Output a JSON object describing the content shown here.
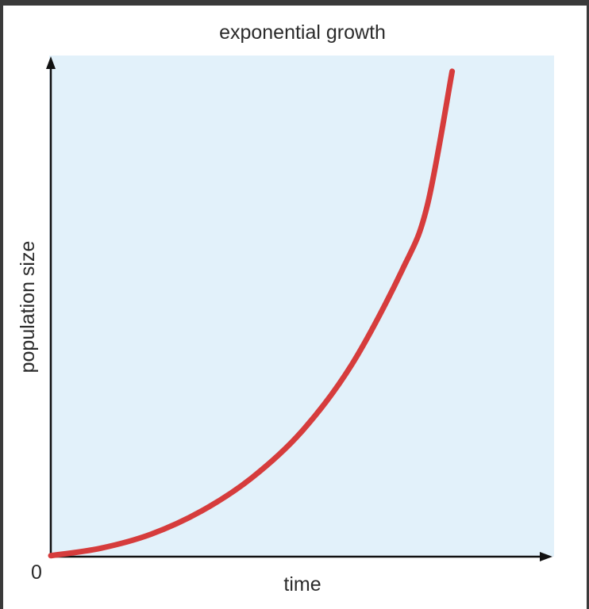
{
  "chart_data": {
    "type": "line",
    "title": "exponential growth",
    "xlabel": "time",
    "ylabel": "population size",
    "origin_label": "0",
    "grid": false,
    "legend": "none",
    "xlim": [
      0,
      10
    ],
    "ylim": [
      0,
      100
    ],
    "series": [
      {
        "x": [
          0,
          1,
          2,
          3,
          4,
          5,
          6,
          7,
          7.5,
          8
        ],
        "y": [
          0.2,
          1.7,
          4.5,
          9.1,
          15.7,
          25.0,
          38.4,
          57.2,
          70.0,
          97.0
        ]
      }
    ],
    "colors": {
      "plot_background": "#e2f1fa",
      "curve": "#d63c3c",
      "axis": "#111111"
    }
  }
}
